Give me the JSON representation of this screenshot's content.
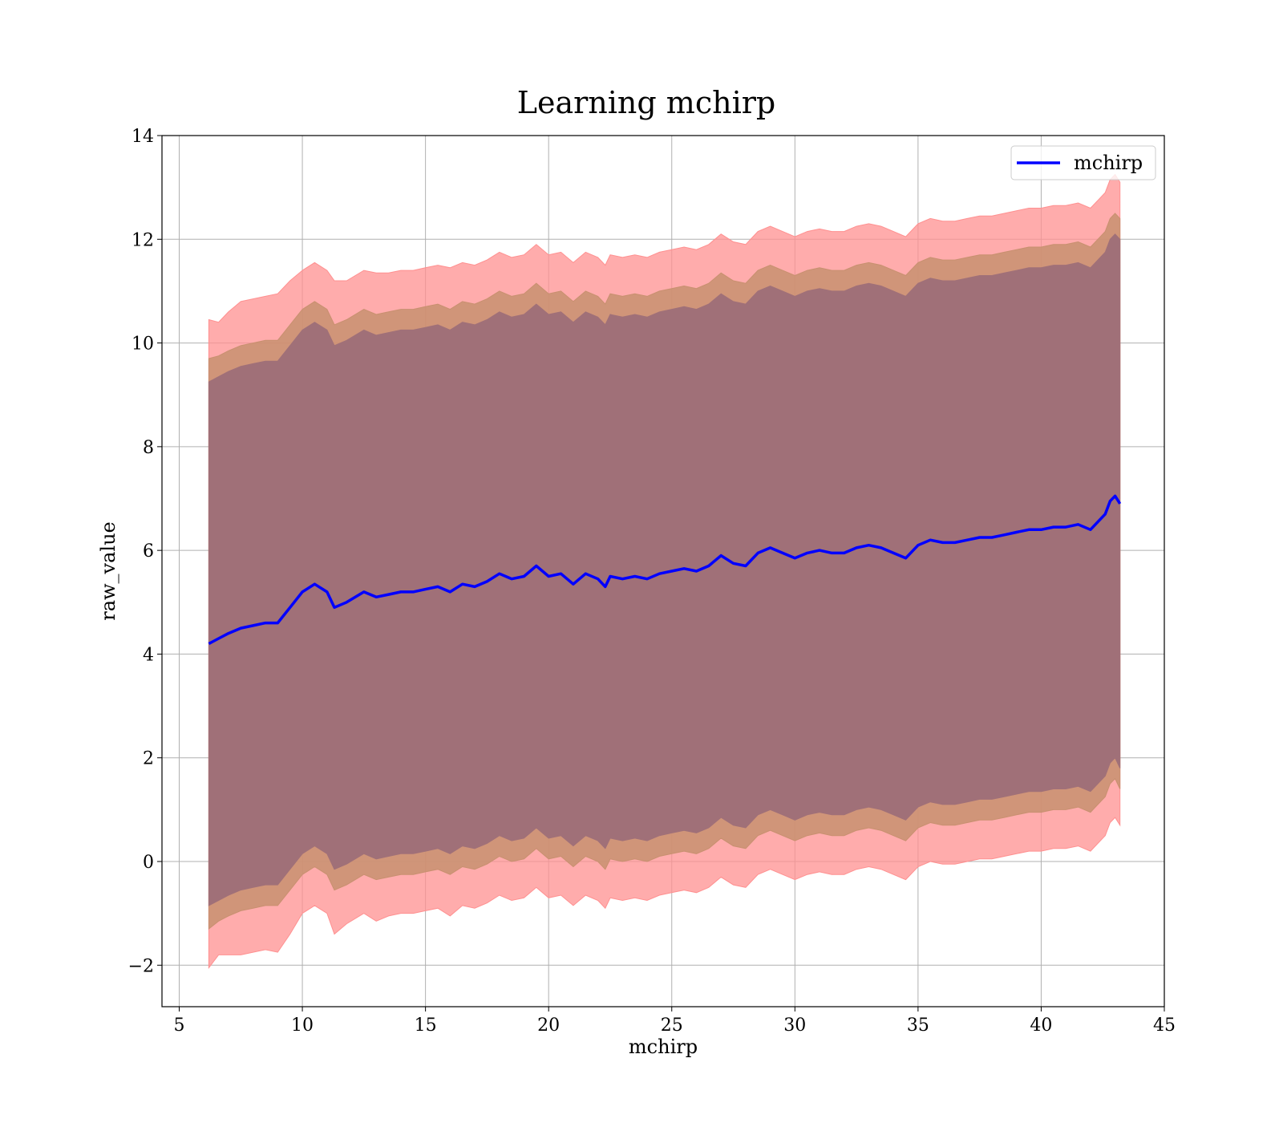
{
  "chart_data": {
    "type": "line",
    "title": "Learning mchirp",
    "xlabel": "mchirp",
    "ylabel": "raw_value",
    "xlim": [
      4.3,
      45
    ],
    "ylim": [
      -2.8,
      14
    ],
    "xticks": [
      5,
      10,
      15,
      20,
      25,
      30,
      35,
      40,
      45
    ],
    "yticks": [
      -2,
      0,
      2,
      4,
      6,
      8,
      10,
      12,
      14
    ],
    "xtick_labels": [
      "5",
      "10",
      "15",
      "20",
      "25",
      "30",
      "35",
      "40",
      "45"
    ],
    "ytick_labels": [
      "−2",
      "0",
      "2",
      "4",
      "6",
      "8",
      "10",
      "12",
      "14"
    ],
    "grid": true,
    "legend": {
      "position": "top-right",
      "entries": [
        "mchirp"
      ]
    },
    "colors": {
      "line": "#0000ff",
      "band_outer": "#ff9090",
      "band_middle": "#c89070",
      "band_inner": "#a07078"
    },
    "series": [
      {
        "name": "mchirp",
        "x": [
          6.2,
          6.6,
          7.0,
          7.5,
          8.0,
          8.5,
          9.0,
          9.5,
          10.0,
          10.5,
          11.0,
          11.3,
          11.8,
          12.5,
          13.0,
          13.5,
          14.0,
          14.5,
          15.0,
          15.5,
          16.0,
          16.5,
          17.0,
          17.5,
          18.0,
          18.5,
          19.0,
          19.5,
          20.0,
          20.5,
          21.0,
          21.5,
          22.0,
          22.3,
          22.5,
          23.0,
          23.5,
          24.0,
          24.5,
          25.0,
          25.5,
          26.0,
          26.5,
          27.0,
          27.5,
          28.0,
          28.5,
          29.0,
          29.5,
          30.0,
          30.5,
          31.0,
          31.5,
          32.0,
          32.5,
          33.0,
          33.5,
          34.0,
          34.5,
          35.0,
          35.5,
          36.0,
          36.5,
          37.0,
          37.5,
          38.0,
          38.5,
          39.0,
          39.5,
          40.0,
          40.5,
          41.0,
          41.5,
          42.0,
          42.3,
          42.6,
          42.8,
          43.0,
          43.2
        ],
        "y": [
          4.2,
          4.3,
          4.4,
          4.5,
          4.55,
          4.6,
          4.6,
          4.9,
          5.2,
          5.35,
          5.2,
          4.9,
          5.0,
          5.2,
          5.1,
          5.15,
          5.2,
          5.2,
          5.25,
          5.3,
          5.2,
          5.35,
          5.3,
          5.4,
          5.55,
          5.45,
          5.5,
          5.7,
          5.5,
          5.55,
          5.35,
          5.55,
          5.45,
          5.3,
          5.5,
          5.45,
          5.5,
          5.45,
          5.55,
          5.6,
          5.65,
          5.6,
          5.7,
          5.9,
          5.75,
          5.7,
          5.95,
          6.05,
          5.95,
          5.85,
          5.95,
          6.0,
          5.95,
          5.95,
          6.05,
          6.1,
          6.05,
          5.95,
          5.85,
          6.1,
          6.2,
          6.15,
          6.15,
          6.2,
          6.25,
          6.25,
          6.3,
          6.35,
          6.4,
          6.4,
          6.45,
          6.45,
          6.5,
          6.4,
          6.55,
          6.7,
          6.95,
          7.05,
          6.9
        ]
      }
    ],
    "bands": [
      {
        "name": "outer",
        "offset": [
          6.25,
          6.1,
          6.2,
          6.3,
          6.3,
          6.3,
          6.35,
          6.3,
          6.2,
          6.2,
          6.2,
          6.3,
          6.2,
          6.2,
          6.25,
          6.2,
          6.2,
          6.2,
          6.2,
          6.2,
          6.25,
          6.2,
          6.2,
          6.2,
          6.2,
          6.2,
          6.2,
          6.2,
          6.2,
          6.2,
          6.2,
          6.2,
          6.2,
          6.2,
          6.2,
          6.2,
          6.2,
          6.2,
          6.2,
          6.2,
          6.2,
          6.2,
          6.2,
          6.2,
          6.2,
          6.2,
          6.2,
          6.2,
          6.2,
          6.2,
          6.2,
          6.2,
          6.2,
          6.2,
          6.2,
          6.2,
          6.2,
          6.2,
          6.2,
          6.2,
          6.2,
          6.2,
          6.2,
          6.2,
          6.2,
          6.2,
          6.2,
          6.2,
          6.2,
          6.2,
          6.2,
          6.2,
          6.2,
          6.2,
          6.2,
          6.2,
          6.2,
          6.2,
          6.2
        ]
      },
      {
        "name": "middle",
        "offset": [
          5.5,
          5.45,
          5.45,
          5.45,
          5.45,
          5.45,
          5.45,
          5.45,
          5.45,
          5.45,
          5.45,
          5.45,
          5.45,
          5.45,
          5.45,
          5.45,
          5.45,
          5.45,
          5.45,
          5.45,
          5.45,
          5.45,
          5.45,
          5.45,
          5.45,
          5.45,
          5.45,
          5.45,
          5.45,
          5.45,
          5.45,
          5.45,
          5.45,
          5.45,
          5.45,
          5.45,
          5.45,
          5.45,
          5.45,
          5.45,
          5.45,
          5.45,
          5.45,
          5.45,
          5.45,
          5.45,
          5.45,
          5.45,
          5.45,
          5.45,
          5.45,
          5.45,
          5.45,
          5.45,
          5.45,
          5.45,
          5.45,
          5.45,
          5.45,
          5.45,
          5.45,
          5.45,
          5.45,
          5.45,
          5.45,
          5.45,
          5.45,
          5.45,
          5.45,
          5.45,
          5.45,
          5.45,
          5.45,
          5.45,
          5.45,
          5.45,
          5.45,
          5.45,
          5.5
        ]
      },
      {
        "name": "inner",
        "offset": [
          5.05,
          5.05,
          5.05,
          5.05,
          5.05,
          5.05,
          5.05,
          5.05,
          5.05,
          5.05,
          5.05,
          5.05,
          5.05,
          5.05,
          5.05,
          5.05,
          5.05,
          5.05,
          5.05,
          5.05,
          5.05,
          5.05,
          5.05,
          5.05,
          5.05,
          5.05,
          5.05,
          5.05,
          5.05,
          5.05,
          5.05,
          5.05,
          5.05,
          5.05,
          5.05,
          5.05,
          5.05,
          5.05,
          5.05,
          5.05,
          5.05,
          5.05,
          5.05,
          5.05,
          5.05,
          5.05,
          5.05,
          5.05,
          5.05,
          5.05,
          5.05,
          5.05,
          5.05,
          5.05,
          5.05,
          5.05,
          5.05,
          5.05,
          5.05,
          5.05,
          5.05,
          5.05,
          5.05,
          5.05,
          5.05,
          5.05,
          5.05,
          5.05,
          5.05,
          5.05,
          5.05,
          5.05,
          5.05,
          5.05,
          5.05,
          5.05,
          5.05,
          5.05,
          5.1
        ]
      }
    ]
  }
}
